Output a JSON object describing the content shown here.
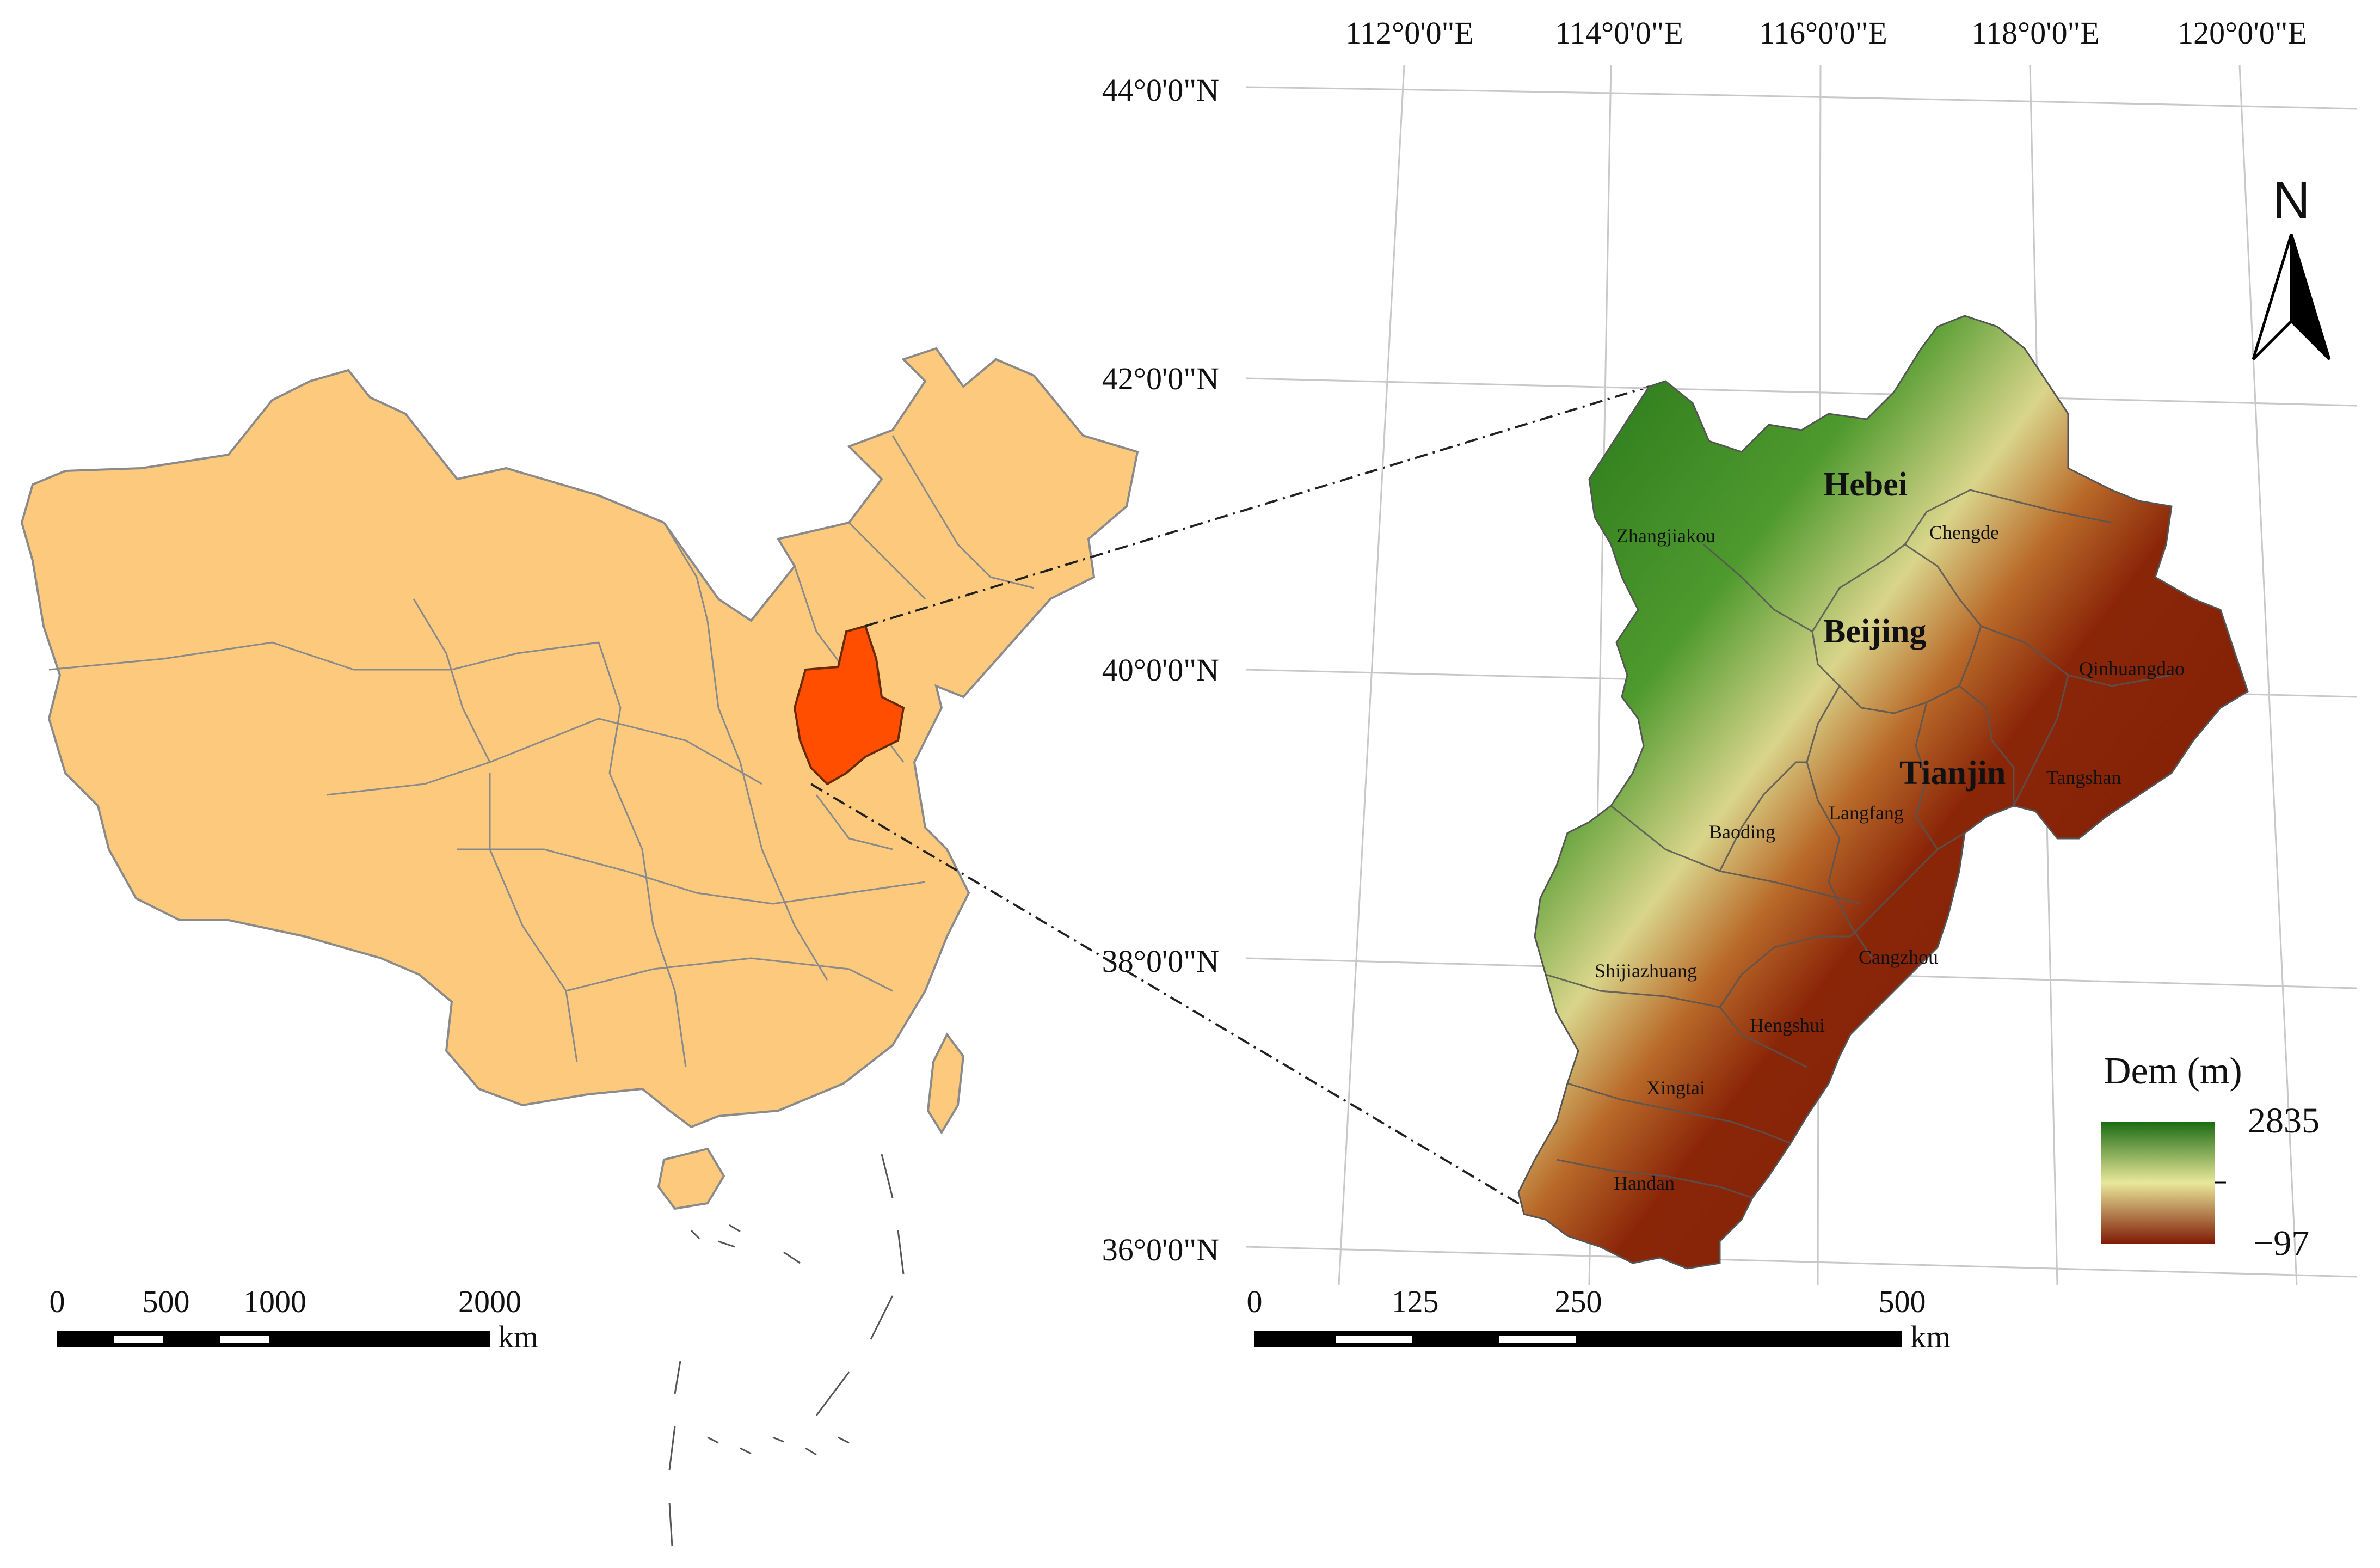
{
  "overview_map": {
    "highlighted_region": "Hebei",
    "colors": {
      "land": "#fdca7d",
      "highlight": "#ff4e00",
      "border": "#8a8a8a"
    },
    "scale_bar": {
      "ticks": [
        "0",
        "500",
        "1000",
        "2000"
      ],
      "unit": "km"
    }
  },
  "main_map": {
    "graticule": {
      "longitudes": [
        "112°0'0\"E",
        "114°0'0\"E",
        "116°0'0\"E",
        "118°0'0\"E",
        "120°0'0\"E"
      ],
      "latitudes": [
        "44°0'0\"N",
        "42°0'0\"N",
        "40°0'0\"N",
        "38°0'0\"N",
        "36°0'0\"N"
      ]
    },
    "regions": [
      "Hebei",
      "Beijing",
      "Tianjin"
    ],
    "cities": [
      "Zhangjiakou",
      "Chengde",
      "Qinhuangdao",
      "Tangshan",
      "Langfang",
      "Baoding",
      "Shijiazhuang",
      "Cangzhou",
      "Hengshui",
      "Xingtai",
      "Handan"
    ],
    "north_arrow": {
      "label": "N"
    },
    "scale_bar": {
      "ticks": [
        "0",
        "125",
        "250",
        "500"
      ],
      "unit": "km"
    },
    "legend": {
      "title": "Dem (m)",
      "max": "2835",
      "min": "−97",
      "colors": [
        "#1a6b12",
        "#e9e89a",
        "#7e1a05"
      ]
    }
  }
}
